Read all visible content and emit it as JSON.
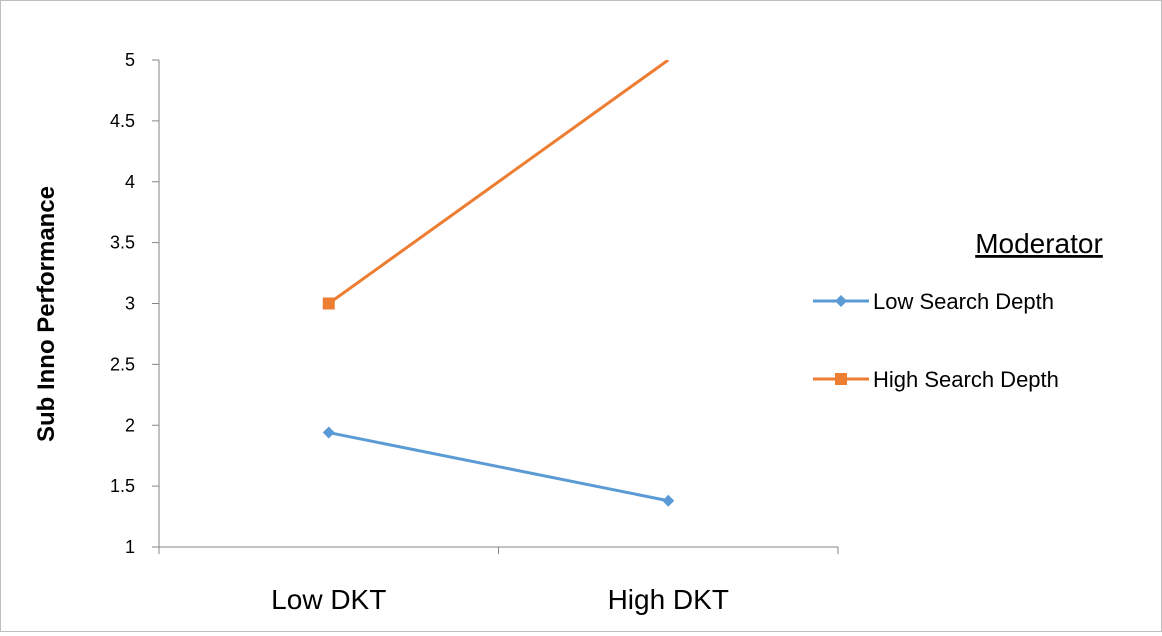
{
  "chart_data": {
    "type": "line",
    "categories": [
      "Low DKT",
      "High DKT"
    ],
    "series": [
      {
        "name": "Low Search Depth",
        "values": [
          1.94,
          1.38
        ],
        "color": "#5b9bd5",
        "marker": "diamond"
      },
      {
        "name": "High Search Depth",
        "values": [
          3.0,
          5.0
        ],
        "color": "#ed7d31",
        "marker": "square"
      }
    ],
    "ylabel": "Sub Inno Performance",
    "xlabel": "",
    "ylim": [
      1,
      5
    ],
    "yticks": [
      "1",
      "1.5",
      "2",
      "2.5",
      "3",
      "3.5",
      "4",
      "4.5",
      "5"
    ],
    "legend": {
      "title": "Moderator",
      "placement": "right"
    },
    "grid": false
  }
}
